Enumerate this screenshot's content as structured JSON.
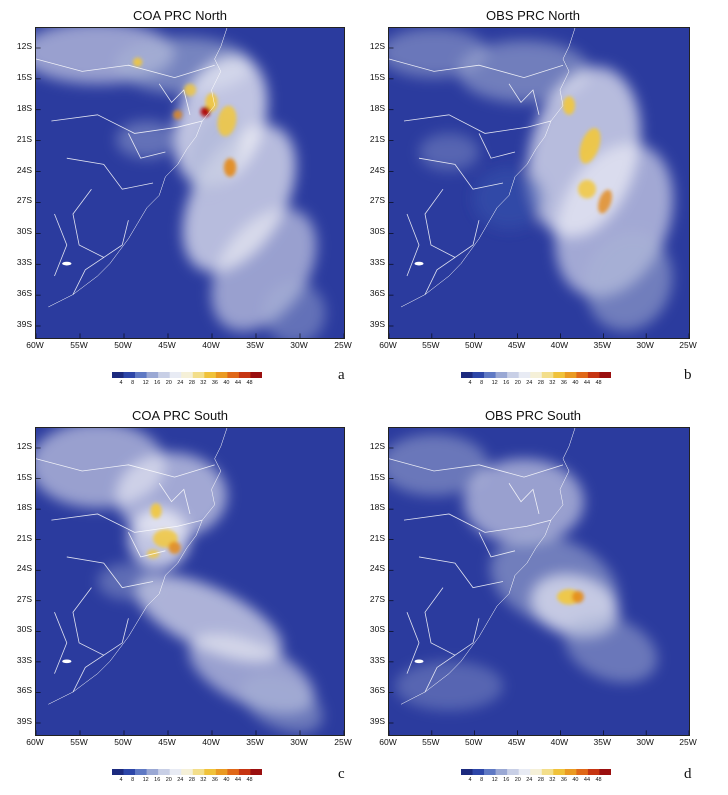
{
  "panels": [
    {
      "id": "a",
      "title": "COA PRC North",
      "label": "a"
    },
    {
      "id": "b",
      "title": "OBS PRC North",
      "label": "b"
    },
    {
      "id": "c",
      "title": "COA PRC South",
      "label": "c"
    },
    {
      "id": "d",
      "title": "OBS PRC South",
      "label": "d"
    }
  ],
  "lat_ticks": [
    "12S",
    "15S",
    "18S",
    "21S",
    "24S",
    "27S",
    "30S",
    "33S",
    "36S",
    "39S"
  ],
  "lon_ticks": [
    "60W",
    "55W",
    "50W",
    "45W",
    "40W",
    "35W",
    "30W",
    "25W"
  ],
  "colorbar_ticks": [
    "4",
    "8",
    "12",
    "16",
    "20",
    "24",
    "28",
    "32",
    "36",
    "40",
    "44",
    "48"
  ],
  "colors": {
    "ocean": "#2b3b9e",
    "low": "#3a55b0",
    "mid": "#a9b4d6",
    "high": "#f2f2f8",
    "yellow": "#f2c83c",
    "orange": "#e48a1a",
    "red": "#b01010",
    "border": "#ffffff"
  }
}
